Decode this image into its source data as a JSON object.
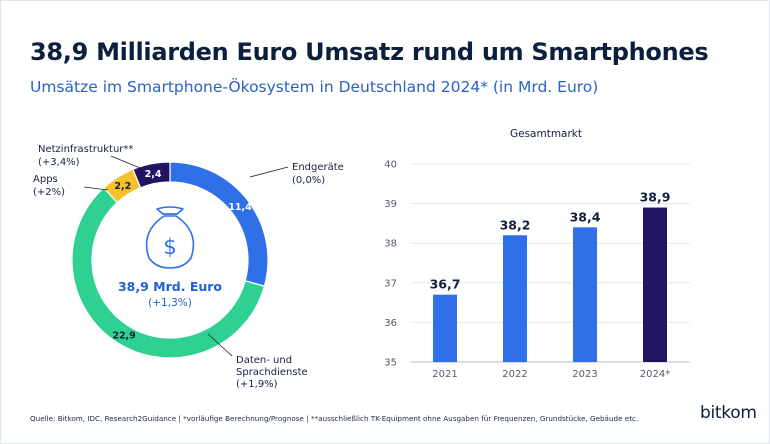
{
  "title": "38,9 Milliarden Euro Umsatz rund um Smartphones",
  "subtitle": "Umsätze im Smartphone-Ökosystem in Deutschland 2024* (in Mrd. Euro)",
  "footnote": "Quelle: Bitkom, IDC, Research2Guidance  | *vorläufige Berechnung/Prognose | **ausschließlich TK-Equipment ohne Ausgaben für Frequenzen, Grundstücke, Gebäude etc.",
  "brand": "bitkom",
  "colors": {
    "endgeraete": "#2f6fe8",
    "daten": "#2fd193",
    "apps": "#f6c12b",
    "netz": "#221363",
    "bar": "#2f6fe8",
    "bar_highlight": "#221363"
  },
  "chart_data": [
    {
      "type": "pie",
      "variant": "donut",
      "center_icon": "money-bag-icon",
      "center_label": "38,9 Mrd. Euro",
      "center_sublabel": "(+1,3%)",
      "slices": [
        {
          "key": "endgeraete",
          "name": "Endgeräte",
          "change": "(0,0%)",
          "value": 11.4,
          "value_label": "11,4",
          "label_color": "#ffffff"
        },
        {
          "key": "daten",
          "name_lines": [
            "Daten- und",
            "Sprachdienste"
          ],
          "change": "(+1,9%)",
          "value": 22.9,
          "value_label": "22,9",
          "label_color": "#14213d"
        },
        {
          "key": "apps",
          "name": "Apps",
          "change": "(+2%)",
          "value": 2.2,
          "value_label": "2,2",
          "label_color": "#14213d"
        },
        {
          "key": "netz",
          "name": "Netzinfrastruktur**",
          "change": "(+3,4%)",
          "value": 2.4,
          "value_label": "2,4",
          "label_color": "#ffffff"
        }
      ]
    },
    {
      "type": "bar",
      "title": "Gesamtmarkt",
      "categories": [
        "2021",
        "2022",
        "2023",
        "2024*"
      ],
      "values": [
        36.7,
        38.2,
        38.4,
        38.9
      ],
      "value_labels": [
        "36,7",
        "38,2",
        "38,4",
        "38,9"
      ],
      "ylim": [
        35,
        40
      ],
      "yticks": [
        35,
        36,
        37,
        38,
        39,
        40
      ],
      "grid": true,
      "highlight_index": 3
    }
  ]
}
